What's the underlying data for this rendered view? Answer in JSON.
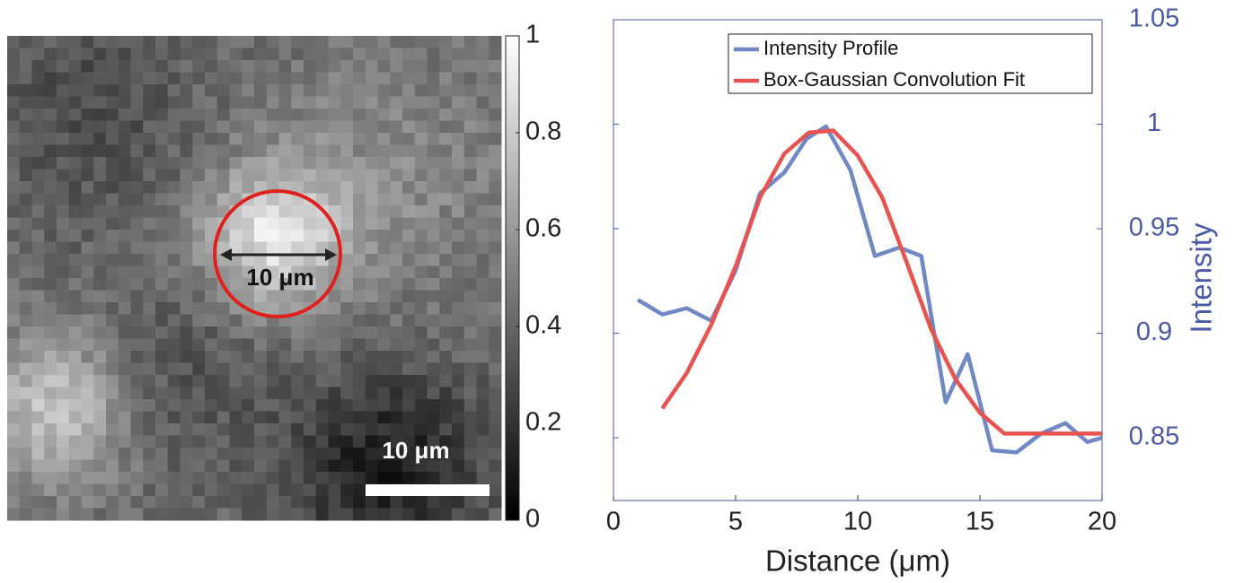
{
  "chart_data": [
    {
      "type": "image",
      "annotations": [
        "10 μm",
        "10 μm"
      ],
      "clim": [
        0,
        1
      ],
      "cticks": [
        0,
        0.2,
        0.4,
        0.6,
        0.8,
        1
      ]
    },
    {
      "type": "line",
      "xlabel": "Distance (μm)",
      "y2label": "Intensity",
      "xlim": [
        0,
        20
      ],
      "xticks": [
        0,
        5,
        10,
        15,
        20
      ],
      "y2lim": [
        0.82,
        1.05
      ],
      "y2ticks": [
        0.85,
        0.9,
        0.95,
        1,
        1.05
      ],
      "legend": "top-right",
      "series": [
        {
          "name": "Intensity Profile",
          "color": "#7088c4",
          "axis": "y2",
          "x": [
            1,
            2,
            3,
            4,
            5,
            6,
            7,
            7.9,
            8.7,
            9.7,
            10.7,
            11.7,
            12.6,
            13.6,
            14.5,
            15.5,
            16.5,
            17.5,
            18.5,
            19.4,
            20
          ],
          "values": [
            0.916,
            0.909,
            0.912,
            0.906,
            0.93,
            0.967,
            0.977,
            0.993,
            0.999,
            0.978,
            0.937,
            0.941,
            0.937,
            0.867,
            0.89,
            0.844,
            0.843,
            0.852,
            0.857,
            0.848,
            0.85
          ]
        },
        {
          "name": "Box-Gaussian Convolution Fit",
          "color": "#e8534f",
          "axis": "y2",
          "x": [
            2,
            3,
            4,
            5,
            6,
            7,
            8,
            9,
            10,
            11,
            12,
            13,
            14,
            15,
            16,
            17,
            18,
            19,
            20
          ],
          "values": [
            0.864,
            0.881,
            0.904,
            0.932,
            0.965,
            0.986,
            0.996,
            0.997,
            0.985,
            0.965,
            0.934,
            0.902,
            0.878,
            0.862,
            0.852,
            0.852,
            0.852,
            0.852,
            0.852
          ]
        }
      ]
    }
  ]
}
